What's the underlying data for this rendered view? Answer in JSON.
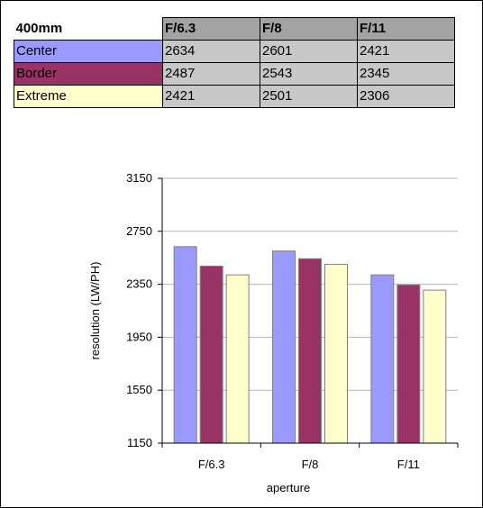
{
  "table": {
    "title": "400mm",
    "columns": [
      "F/6.3",
      "F/8",
      "F/11"
    ],
    "rows": [
      {
        "label": "Center",
        "values": [
          "2634",
          "2601",
          "2421"
        ]
      },
      {
        "label": "Border",
        "values": [
          "2487",
          "2543",
          "2345"
        ]
      },
      {
        "label": "Extreme",
        "values": [
          "2421",
          "2501",
          "2306"
        ]
      }
    ]
  },
  "colors": {
    "center": "#9999ff",
    "border": "#993366",
    "extreme": "#ffffcc",
    "header_bg": "#a3a3a3",
    "cell_bg": "#c8c8c8",
    "grid": "#b3b3b3"
  },
  "chart_data": {
    "type": "bar",
    "categories": [
      "F/6.3",
      "F/8",
      "F/11"
    ],
    "series": [
      {
        "name": "Center",
        "values": [
          2634,
          2601,
          2421
        ]
      },
      {
        "name": "Border",
        "values": [
          2487,
          2543,
          2345
        ]
      },
      {
        "name": "Extreme",
        "values": [
          2421,
          2501,
          2306
        ]
      }
    ],
    "yticks": [
      1150,
      1550,
      1950,
      2350,
      2750,
      3150
    ],
    "ylim": [
      1150,
      3150
    ],
    "xlabel": "aperture",
    "ylabel": "resolution (LW/PH)",
    "grid": true,
    "legend": "none"
  }
}
